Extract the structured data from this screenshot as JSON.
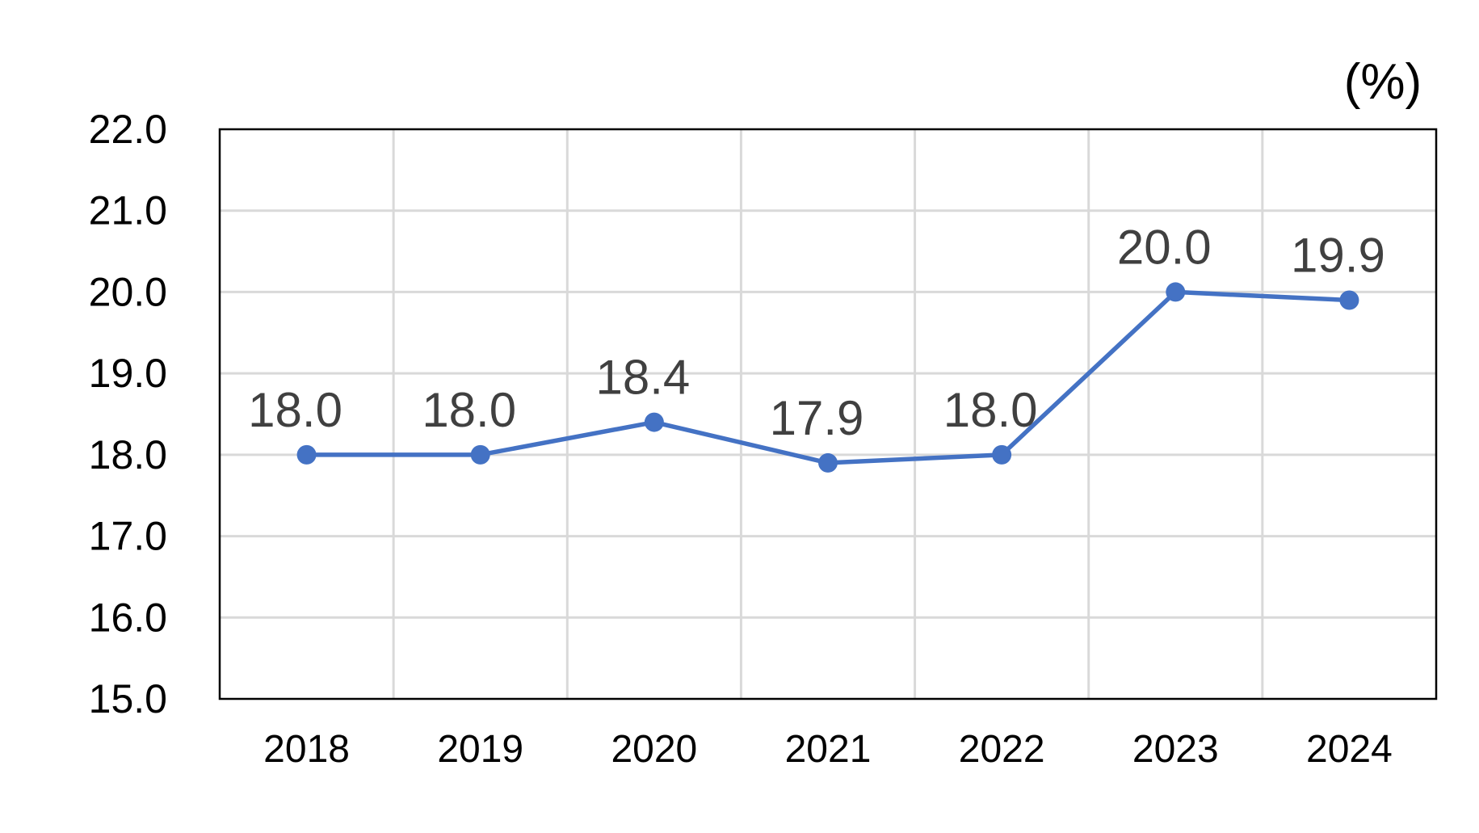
{
  "chart_data": {
    "type": "line",
    "unit": "(%)",
    "categories": [
      "2018",
      "2019",
      "2020",
      "2021",
      "2022",
      "2023",
      "2024"
    ],
    "series": [
      {
        "values": [
          18.0,
          18.0,
          18.4,
          17.9,
          18.0,
          20.0,
          19.9
        ],
        "labels": [
          "18.0",
          "18.0",
          "18.4",
          "17.9",
          "18.0",
          "20.0",
          "19.9"
        ],
        "color": "#4472c4"
      }
    ],
    "ylim": [
      15.0,
      22.0
    ],
    "yticks": [
      "22.0",
      "21.0",
      "20.0",
      "19.0",
      "18.0",
      "17.0",
      "16.0",
      "15.0"
    ],
    "grid": true,
    "legend": "none"
  }
}
